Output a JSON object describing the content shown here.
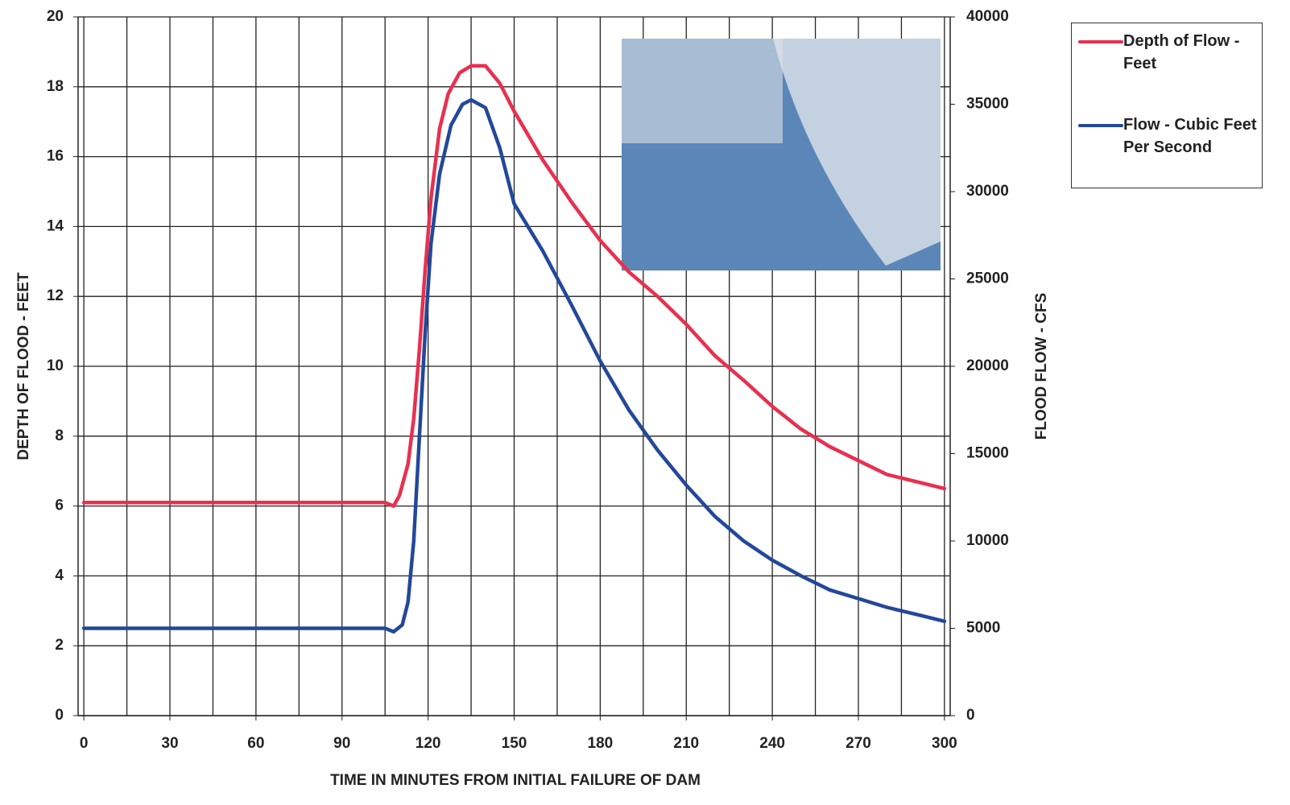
{
  "chart_data": {
    "type": "line",
    "xlabel": "TIME IN MINUTES FROM INITIAL FAILURE OF DAM",
    "ylabel": "DEPTH OF FLOOD - FEET",
    "y2label": "FLOOD FLOW - CFS",
    "xlim": [
      -2,
      302
    ],
    "xticks": [
      0,
      30,
      60,
      90,
      120,
      150,
      180,
      210,
      240,
      270,
      300
    ],
    "ylim": [
      0,
      20
    ],
    "yticks": [
      0,
      2,
      4,
      6,
      8,
      10,
      12,
      14,
      16,
      18,
      20
    ],
    "y2lim": [
      0,
      40000
    ],
    "y2ticks": [
      0,
      5000,
      10000,
      15000,
      20000,
      25000,
      30000,
      35000,
      40000
    ],
    "grid": true,
    "series": [
      {
        "name": "Depth of Flow - Feet",
        "color": "#e8304f",
        "x": [
          0,
          105,
          108,
          110,
          113,
          115,
          117,
          119,
          121,
          124,
          127,
          131,
          135,
          140,
          145,
          150,
          160,
          170,
          180,
          190,
          200,
          210,
          220,
          230,
          240,
          250,
          260,
          270,
          280,
          290,
          300
        ],
        "values": [
          6.1,
          6.1,
          6.0,
          6.3,
          7.2,
          8.5,
          10.5,
          12.8,
          14.8,
          16.8,
          17.8,
          18.4,
          18.6,
          18.6,
          18.1,
          17.3,
          15.9,
          14.7,
          13.6,
          12.7,
          12.0,
          11.2,
          10.3,
          9.6,
          8.85,
          8.2,
          7.7,
          7.3,
          6.9,
          6.7,
          6.5
        ]
      },
      {
        "name": "Flow - Cubic Feet Per Second",
        "color": "#23489a",
        "axis": "y2",
        "x": [
          0,
          105,
          108,
          111,
          113,
          115,
          117,
          119,
          121,
          124,
          128,
          132,
          135,
          140,
          145,
          150,
          160,
          170,
          180,
          190,
          200,
          210,
          220,
          230,
          240,
          250,
          260,
          270,
          280,
          290,
          300
        ],
        "values": [
          5000,
          5000,
          4800,
          5200,
          6500,
          10000,
          16000,
          22000,
          27000,
          31000,
          33800,
          35000,
          35250,
          34800,
          32500,
          29300,
          26600,
          23500,
          20300,
          17500,
          15200,
          13200,
          11400,
          10000,
          8900,
          8000,
          7200,
          6700,
          6200,
          5800,
          5400
        ]
      }
    ]
  }
}
